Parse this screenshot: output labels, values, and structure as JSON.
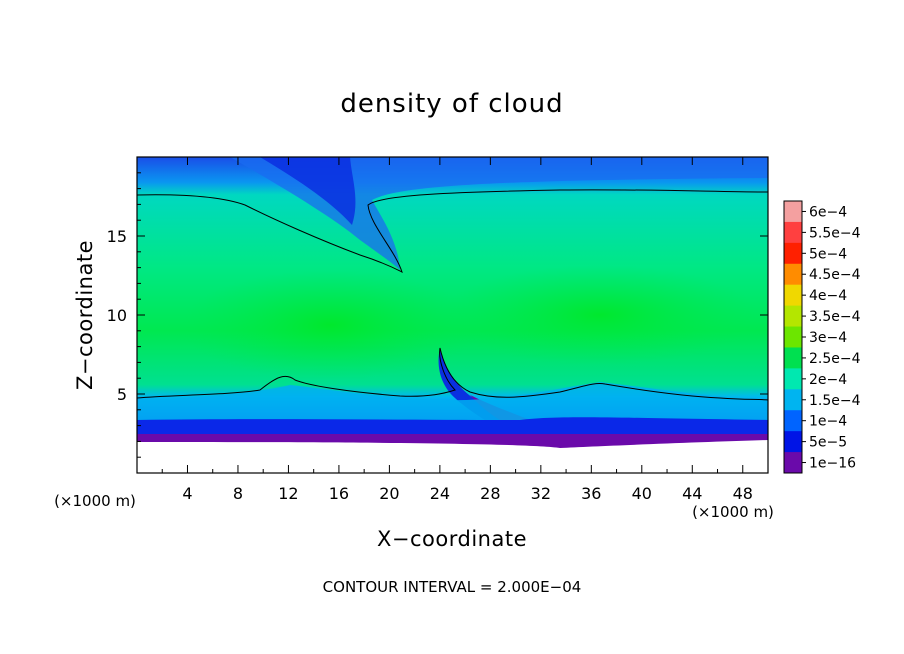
{
  "chart_data": {
    "type": "heatmap",
    "title": "density of cloud",
    "xlabel": "X−coordinate",
    "ylabel": "Z−coordinate",
    "x_unit": "(×1000 m)",
    "x_unit_right": "(×1000 m)",
    "xlim": [
      0,
      50
    ],
    "ylim": [
      0,
      20
    ],
    "x_ticks": [
      4,
      8,
      12,
      16,
      20,
      24,
      28,
      32,
      36,
      40,
      44,
      48
    ],
    "y_ticks": [
      5,
      10,
      15
    ],
    "colorbar": {
      "position": "right",
      "labels": [
        "6e−4",
        "5.5e−4",
        "5e−4",
        "4.5e−4",
        "4e−4",
        "3.5e−4",
        "3e−4",
        "2.5e−4",
        "2e−4",
        "1.5e−4",
        "1e−4",
        "5e−5",
        "1e−16"
      ],
      "values": [
        0.0006,
        0.00055,
        0.0005,
        0.00045,
        0.0004,
        0.00035,
        0.0003,
        0.00025,
        0.0002,
        0.00015,
        0.0001,
        5e-05,
        1e-16
      ],
      "colors": [
        "#f4a0a0",
        "#ff4040",
        "#ff2000",
        "#ff8c00",
        "#f0d800",
        "#b4e600",
        "#6ce600",
        "#00e050",
        "#00e8b0",
        "#00b4f0",
        "#0064ff",
        "#0014e6",
        "#6a0aaa"
      ]
    },
    "contour_levels": [
      0.0002
    ],
    "footer": "CONTOUR INTERVAL = 2.000E−04"
  }
}
